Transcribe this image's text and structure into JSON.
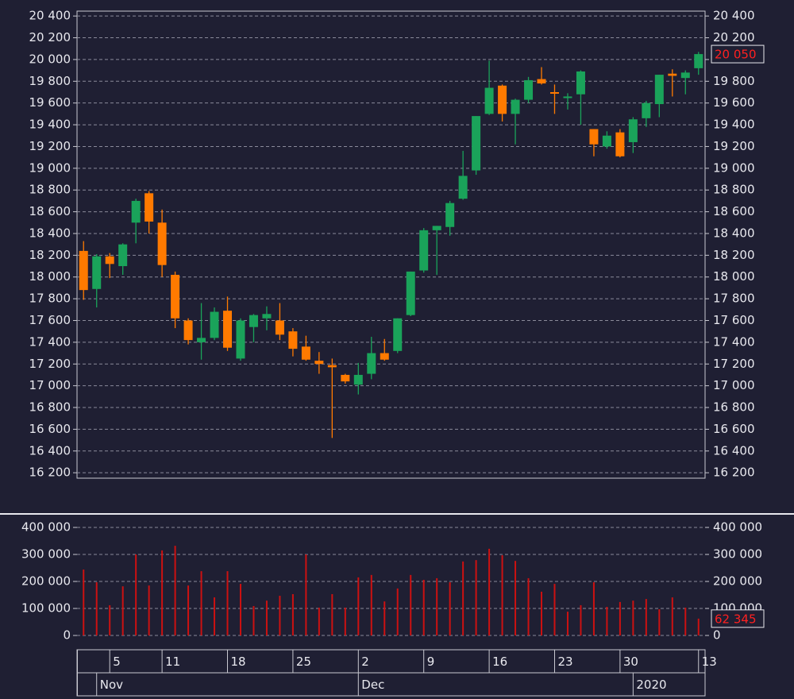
{
  "chart_data": [
    {
      "type": "candlestick",
      "open": [
        18240,
        17890,
        18190,
        18100,
        18500,
        18770,
        18500,
        18020,
        17600,
        17400,
        17440,
        17690,
        17250,
        17540,
        17620,
        17600,
        17500,
        17360,
        17230,
        17190,
        17100,
        17010,
        17110,
        17300,
        17320,
        17650,
        18060,
        18430,
        18460,
        18720,
        18980,
        19500,
        19760,
        19500,
        19630,
        19820,
        19700,
        19650,
        19680,
        19360,
        19200,
        19330,
        19240,
        19460,
        19590,
        19870,
        19830,
        19920
      ],
      "high": [
        18330,
        18210,
        18220,
        18310,
        18720,
        18790,
        18620,
        18050,
        17620,
        17760,
        17720,
        17820,
        17620,
        17660,
        17730,
        17760,
        17530,
        17460,
        17310,
        17250,
        17110,
        17210,
        17450,
        17430,
        17620,
        18050,
        18450,
        18470,
        18700,
        19160,
        19480,
        19990,
        19770,
        19640,
        19840,
        19930,
        19770,
        19690,
        19900,
        19360,
        19340,
        19360,
        19470,
        19620,
        19860,
        19910,
        19900,
        20070
      ],
      "low": [
        17790,
        17720,
        17990,
        18020,
        18310,
        18400,
        18000,
        17530,
        17380,
        17240,
        17420,
        17320,
        17230,
        17400,
        17510,
        17420,
        17270,
        17230,
        17110,
        16520,
        17020,
        16920,
        17060,
        17230,
        17300,
        17640,
        18040,
        18020,
        18380,
        18710,
        18940,
        19490,
        19430,
        19220,
        19600,
        19770,
        19500,
        19540,
        19400,
        19110,
        19180,
        19100,
        19140,
        19380,
        19470,
        19660,
        19680,
        19860
      ],
      "close": [
        17880,
        18190,
        18120,
        18300,
        18700,
        18510,
        18110,
        17620,
        17420,
        17440,
        17680,
        17350,
        17600,
        17650,
        17660,
        17470,
        17340,
        17240,
        17200,
        17170,
        17040,
        17100,
        17300,
        17240,
        17620,
        18050,
        18430,
        18470,
        18680,
        18930,
        19480,
        19740,
        19500,
        19630,
        19810,
        19780,
        19690,
        19660,
        19890,
        19220,
        19300,
        19110,
        19450,
        19600,
        19860,
        19850,
        19880,
        20050
      ],
      "up_color": "#1aa35a",
      "down_color": "#ff7a00",
      "ylim": [
        16150,
        20445
      ],
      "yticks": [
        {
          "value": 16200,
          "label": "16 200"
        },
        {
          "value": 16400,
          "label": "16 400"
        },
        {
          "value": 16600,
          "label": "16 600"
        },
        {
          "value": 16800,
          "label": "16 800"
        },
        {
          "value": 17000,
          "label": "17 000"
        },
        {
          "value": 17200,
          "label": "17 200"
        },
        {
          "value": 17400,
          "label": "17 400"
        },
        {
          "value": 17600,
          "label": "17 600"
        },
        {
          "value": 17800,
          "label": "17 800"
        },
        {
          "value": 18000,
          "label": "18 000"
        },
        {
          "value": 18200,
          "label": "18 200"
        },
        {
          "value": 18400,
          "label": "18 400"
        },
        {
          "value": 18600,
          "label": "18 600"
        },
        {
          "value": 18800,
          "label": "18 800"
        },
        {
          "value": 19000,
          "label": "19 000"
        },
        {
          "value": 19200,
          "label": "19 200"
        },
        {
          "value": 19400,
          "label": "19 400"
        },
        {
          "value": 19600,
          "label": "19 600"
        },
        {
          "value": 19800,
          "label": "19 800"
        },
        {
          "value": 20000,
          "label": "20 000"
        },
        {
          "value": 20200,
          "label": "20 200"
        },
        {
          "value": 20400,
          "label": "20 400"
        }
      ],
      "grid": true,
      "last_label": {
        "value": 20050,
        "label": "20 050"
      }
    },
    {
      "type": "bar",
      "categories": [
        null,
        null,
        "5",
        null,
        null,
        null,
        "11",
        null,
        null,
        null,
        null,
        "18",
        null,
        null,
        null,
        null,
        "25",
        null,
        null,
        null,
        null,
        "2",
        null,
        null,
        null,
        null,
        "9",
        null,
        null,
        null,
        null,
        "16",
        null,
        null,
        null,
        null,
        "23",
        null,
        null,
        null,
        null,
        "30",
        null,
        null,
        null,
        null,
        null,
        "13"
      ],
      "months": [
        {
          "value": 1,
          "label": "Nov"
        },
        {
          "value": 21,
          "label": "Dec"
        },
        {
          "value": 42,
          "label": "2020"
        }
      ],
      "values": [
        244000,
        197000,
        112000,
        182000,
        300000,
        185000,
        315000,
        332000,
        185000,
        238000,
        141000,
        238000,
        191000,
        109000,
        129000,
        147000,
        153000,
        300000,
        103000,
        153000,
        103000,
        215000,
        224000,
        126000,
        174000,
        224000,
        206000,
        212000,
        197000,
        274000,
        279000,
        321000,
        297000,
        276000,
        212000,
        162000,
        191000,
        88000,
        112000,
        197000,
        106000,
        124000,
        129000,
        135000,
        97000,
        141000,
        103000,
        62345
      ],
      "color": "#cc1111",
      "ylim": [
        -17600,
        420600
      ],
      "yticks": [
        0,
        {
          "value": 100000,
          "label": "100 000"
        },
        {
          "value": 200000,
          "label": "200 000"
        },
        {
          "value": 300000,
          "label": "300 000"
        },
        {
          "value": 400000,
          "label": "400 000"
        }
      ],
      "grid": true,
      "last_label": {
        "value": 62345,
        "label": "62 345"
      }
    }
  ]
}
